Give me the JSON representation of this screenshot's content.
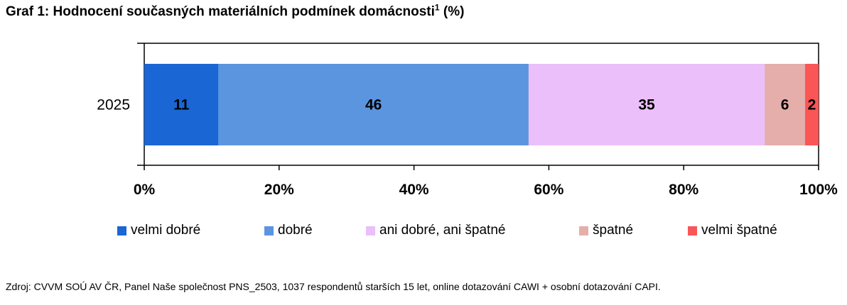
{
  "title": {
    "main": "Graf 1: Hodnocení současných materiálních podmínek domácnosti",
    "superscript": "1",
    "suffix": " (%)"
  },
  "chart_data": {
    "type": "bar",
    "orientation": "horizontal",
    "stacked": "percent",
    "categories": [
      "2025"
    ],
    "series": [
      {
        "name": "velmi dobré",
        "values": [
          11
        ],
        "color": "#1a66d4"
      },
      {
        "name": "dobré",
        "values": [
          46
        ],
        "color": "#5b95e0"
      },
      {
        "name": "ani dobré, ani špatné",
        "values": [
          35
        ],
        "color": "#ebbffa"
      },
      {
        "name": "špatné",
        "values": [
          6
        ],
        "color": "#e5aeaa"
      },
      {
        "name": "velmi špatné",
        "values": [
          2
        ],
        "color": "#fa5557"
      }
    ],
    "x_ticks": [
      "0%",
      "20%",
      "40%",
      "60%",
      "80%",
      "100%"
    ],
    "xlim": [
      0,
      100
    ],
    "grid": false,
    "legend_position": "bottom"
  },
  "source": "Zdroj: CVVM SOÚ AV ČR, Panel Naše společnost PNS_2503, 1037 respondentů starších 15 let, online dotazování CAWI + osobní dotazování CAPI."
}
